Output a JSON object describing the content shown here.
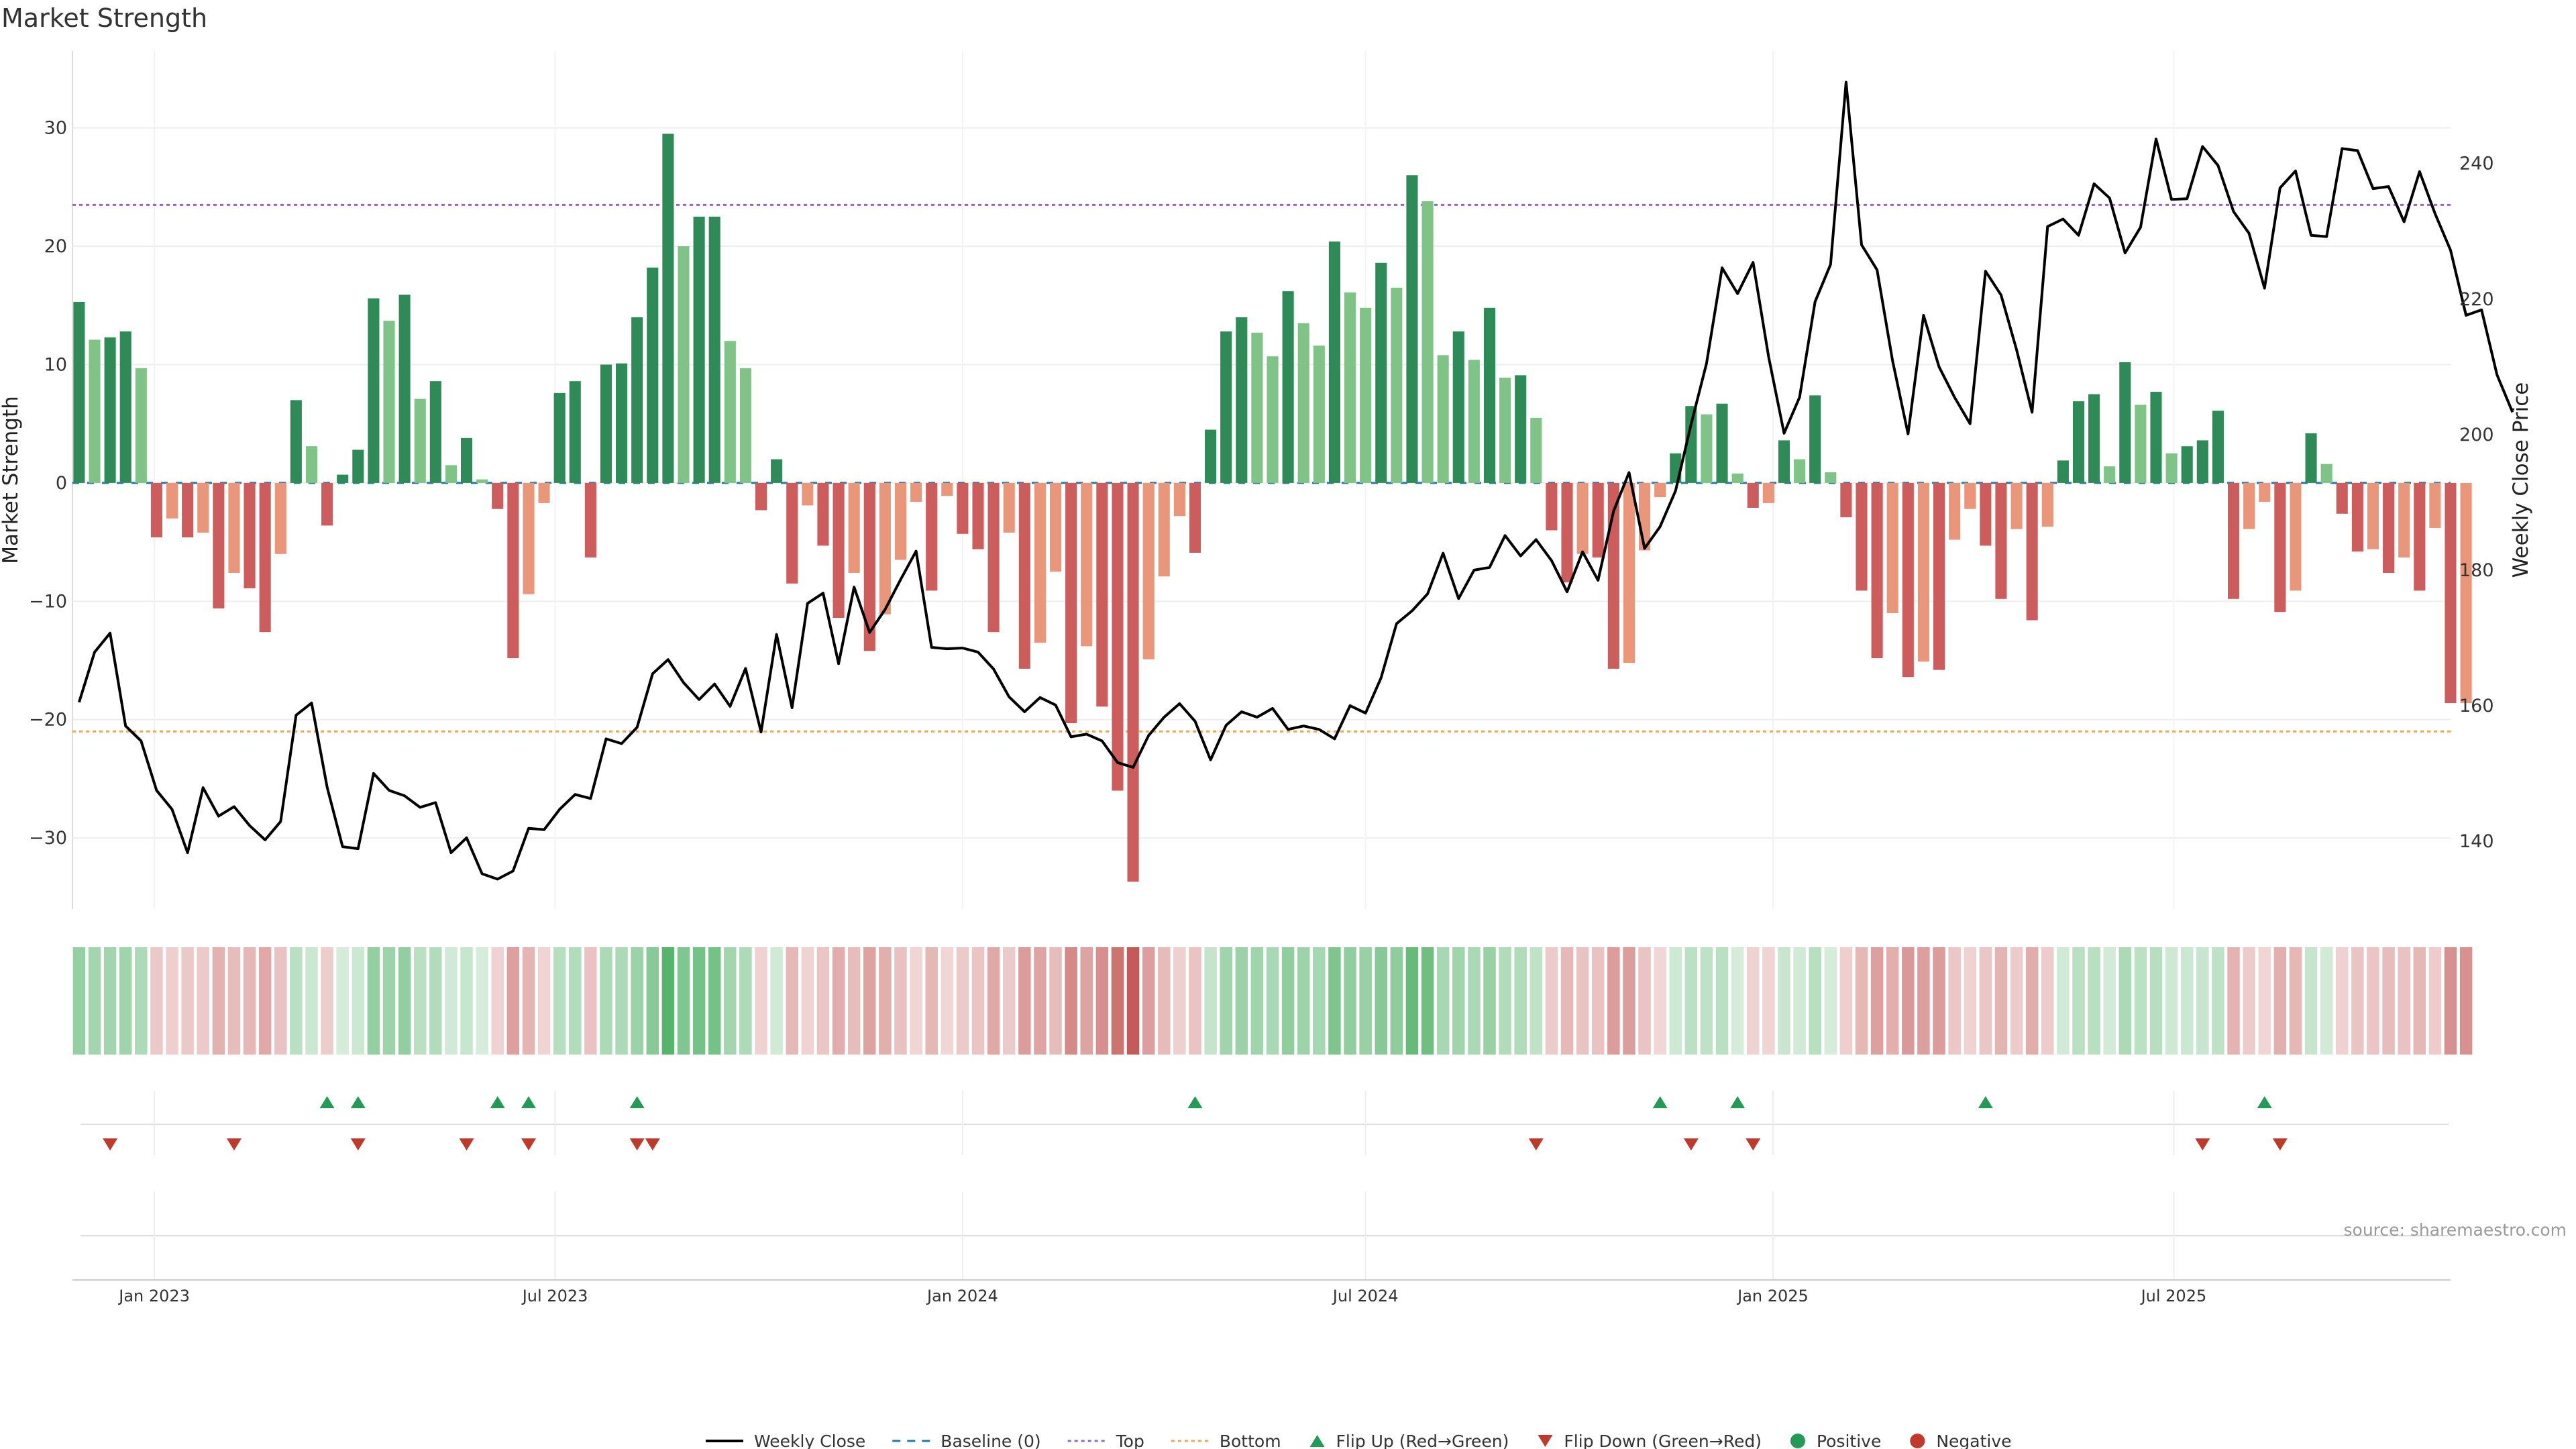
{
  "title": "Market Strength",
  "source": "source: sharemaestro.com",
  "colors": {
    "strong_green": "#2e8b57",
    "light_green": "#7fc486",
    "strong_red": "#cd5c5c",
    "light_red": "#e9967a",
    "price_line": "#000000",
    "baseline": "#1f77b4",
    "top": "#9467bd",
    "bottom": "#e8a85c",
    "flip_up": "#239b56",
    "flip_down": "#c0392b"
  },
  "chart_data": {
    "type": "bar",
    "title": "Market Strength",
    "ylabel": "Market Strength",
    "y2label": "Weekly Close Price",
    "ylim": [
      -36,
      36.5
    ],
    "y2lim": [
      130,
      256.6
    ],
    "yticks": [
      30,
      20,
      10,
      0,
      -10,
      -20,
      -30
    ],
    "y2ticks": [
      240,
      220,
      200,
      180,
      160,
      140
    ],
    "xlim": [
      "2022-11-25",
      "2025-11-03"
    ],
    "xticks": [
      {
        "date": "2023-01-01",
        "label": "Jan 2023"
      },
      {
        "date": "2023-07-01",
        "label": "Jul 2023"
      },
      {
        "date": "2024-01-01",
        "label": "Jan 2024"
      },
      {
        "date": "2024-07-01",
        "label": "Jul 2024"
      },
      {
        "date": "2025-01-01",
        "label": "Jan 2025"
      },
      {
        "date": "2025-07-01",
        "label": "Jul 2025"
      }
    ],
    "top_level": 23.5,
    "bottom_level": -21.0,
    "start_week": "2022-11-28",
    "strength": [
      15.3,
      12.1,
      12.3,
      12.8,
      9.7,
      -4.6,
      -3.0,
      -4.6,
      -4.2,
      -10.6,
      -7.6,
      -8.9,
      -12.6,
      -6.0,
      7.0,
      3.1,
      -3.6,
      0.7,
      2.8,
      15.6,
      13.7,
      15.9,
      7.1,
      8.6,
      1.5,
      3.8,
      0.3,
      -2.2,
      -14.8,
      -9.4,
      -1.7,
      7.6,
      8.6,
      -6.3,
      10.0,
      10.1,
      14.0,
      18.2,
      29.5,
      20.0,
      22.5,
      22.5,
      12.0,
      9.7,
      -2.3,
      2.0,
      -8.5,
      -1.9,
      -5.3,
      -11.4,
      -7.6,
      -14.2,
      -11.1,
      -6.5,
      -1.6,
      -9.1,
      -1.1,
      -4.3,
      -5.6,
      -12.6,
      -4.2,
      -15.7,
      -13.5,
      -7.5,
      -20.3,
      -13.8,
      -18.9,
      -26.0,
      -33.7,
      -14.9,
      -7.9,
      -2.8,
      -5.9,
      4.5,
      12.8,
      14.0,
      12.7,
      10.7,
      16.2,
      13.5,
      11.6,
      20.4,
      16.1,
      14.8,
      18.6,
      16.5,
      26.0,
      23.8,
      10.8,
      12.8,
      10.4,
      14.8,
      8.9,
      9.1,
      5.5,
      -4.0,
      -8.4,
      -6.0,
      -6.3,
      -15.7,
      -15.2,
      -5.7,
      -1.2,
      2.5,
      6.5,
      5.8,
      6.7,
      0.8,
      -2.1,
      -1.7,
      3.6,
      2.0,
      7.4,
      0.9,
      -2.9,
      -9.1,
      -14.8,
      -11.0,
      -16.4,
      -15.1,
      -15.8,
      -4.8,
      -2.2,
      -5.3,
      -9.8,
      -3.9,
      -11.6,
      -3.7,
      1.9,
      6.9,
      7.5,
      1.4,
      10.2,
      6.6,
      7.7,
      2.5,
      3.1,
      3.6,
      6.1,
      -9.8,
      -3.9,
      -1.6,
      -10.9,
      -9.1,
      4.2,
      1.6,
      -2.6,
      -5.8,
      -5.6,
      -7.6,
      -6.3,
      -9.1,
      -3.8,
      -18.6,
      -18.6
    ],
    "price": [
      160.5,
      167.9,
      170.7,
      157.0,
      154.8,
      147.5,
      144.7,
      138.3,
      147.9,
      143.7,
      145.1,
      142.3,
      140.2,
      142.9,
      158.6,
      160.4,
      148.0,
      139.2,
      138.9,
      150.0,
      147.5,
      146.7,
      145.0,
      145.7,
      138.3,
      140.5,
      135.2,
      134.4,
      135.6,
      141.9,
      141.7,
      144.7,
      146.9,
      146.3,
      155.1,
      154.4,
      156.8,
      164.7,
      166.8,
      163.4,
      160.9,
      163.2,
      159.9,
      165.5,
      156.1,
      170.5,
      159.7,
      175.1,
      176.6,
      166.2,
      177.5,
      170.8,
      174.2,
      178.6,
      182.8,
      168.6,
      168.4,
      168.5,
      167.9,
      165.4,
      161.3,
      159.1,
      161.2,
      160.1,
      155.4,
      155.8,
      154.8,
      151.6,
      150.9,
      155.6,
      158.3,
      160.3,
      157.7,
      152.0,
      157.1,
      159.1,
      158.3,
      159.6,
      156.5,
      157.0,
      156.5,
      155.1,
      160.0,
      158.9,
      164.1,
      172.1,
      174.0,
      176.5,
      182.5,
      175.8,
      180.0,
      180.4,
      185.1,
      182.1,
      184.5,
      181.4,
      176.8,
      182.7,
      178.5,
      188.7,
      194.4,
      183.2,
      186.4,
      191.7,
      201.5,
      210.5,
      224.6,
      220.8,
      225.4,
      211.5,
      200.2,
      205.5,
      219.6,
      225.1,
      252.0,
      228.0,
      224.3,
      210.9,
      200.1,
      217.6,
      210.0,
      205.5,
      201.6,
      224.1,
      220.6,
      212.5,
      203.3,
      230.7,
      231.8,
      229.4,
      237.0,
      234.9,
      226.8,
      230.6,
      243.6,
      234.7,
      234.8,
      242.5,
      239.7,
      232.9,
      229.7,
      221.6,
      236.4,
      238.9,
      229.4,
      229.2,
      242.2,
      241.9,
      236.3,
      236.6,
      231.4,
      238.8,
      232.6,
      227.2,
      217.6,
      218.4,
      208.8,
      203.3
    ],
    "flip_up": [
      "2023-03-20",
      "2023-04-03",
      "2023-06-05",
      "2023-06-19",
      "2023-08-07",
      "2024-04-15",
      "2024-11-11",
      "2024-12-16",
      "2025-04-07",
      "2025-08-11"
    ],
    "flip_down": [
      "2022-12-12",
      "2023-02-06",
      "2023-04-03",
      "2023-05-22",
      "2023-06-19",
      "2023-08-07",
      "2023-08-14",
      "2024-09-16",
      "2024-11-25",
      "2024-12-23",
      "2025-07-14",
      "2025-08-18"
    ]
  },
  "legend": [
    {
      "label": "Weekly Close",
      "icon": "solid-line"
    },
    {
      "label": "Baseline (0)",
      "icon": "dashed-line"
    },
    {
      "label": "Top",
      "icon": "dotted-line"
    },
    {
      "label": "Bottom",
      "icon": "dotted-line"
    },
    {
      "label": "Flip Up (Red→Green)",
      "icon": "triangle-up"
    },
    {
      "label": "Flip Down (Green→Red)",
      "icon": "triangle-down"
    },
    {
      "label": "Positive",
      "icon": "circle"
    },
    {
      "label": "Negative",
      "icon": "circle"
    }
  ]
}
